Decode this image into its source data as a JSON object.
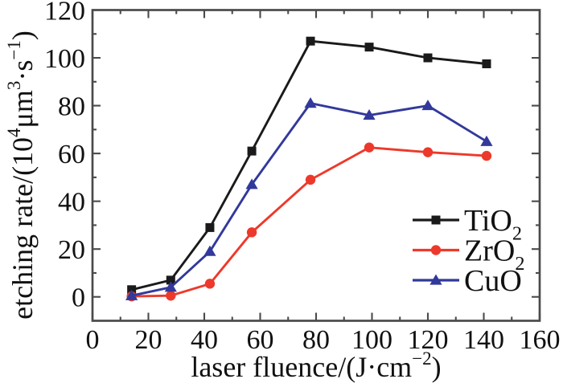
{
  "figure": {
    "background": "#ffffff"
  },
  "chart_data": {
    "type": "line",
    "title": "",
    "xlabel_text": "laser fluence/(J·cm⁻²)",
    "ylabel_text": "etching rate/(10⁴μm³·s⁻¹)",
    "xlabel_parts": [
      [
        "laser fluence/(J·cm",
        "n"
      ],
      [
        "−2",
        "sup"
      ],
      [
        ")",
        "n"
      ]
    ],
    "ylabel_parts": [
      [
        "etching rate/(10",
        "n"
      ],
      [
        "4",
        "sup"
      ],
      [
        "μm",
        "n"
      ],
      [
        "3",
        "sup"
      ],
      [
        "·s",
        "n"
      ],
      [
        "−1",
        "sup"
      ],
      [
        ")",
        "n"
      ]
    ],
    "x": [
      14,
      28,
      42,
      57,
      78,
      99,
      120,
      141
    ],
    "series": [
      {
        "name": "TiO2",
        "label_parts": [
          [
            "TiO",
            "n"
          ],
          [
            "2",
            "sub"
          ]
        ],
        "color": "#1a1a1a",
        "marker": "square",
        "values": [
          3,
          7,
          29,
          61,
          107,
          104.5,
          100,
          97.5
        ]
      },
      {
        "name": "ZrO2",
        "label_parts": [
          [
            "ZrO",
            "n"
          ],
          [
            "2",
            "sub"
          ]
        ],
        "color": "#ed392b",
        "marker": "circle",
        "values": [
          0.2,
          0.5,
          5.5,
          27,
          49,
          62.5,
          60.5,
          59
        ]
      },
      {
        "name": "CuO",
        "label_parts": [
          [
            "CuO",
            "n"
          ]
        ],
        "color": "#32399b",
        "marker": "triangle",
        "values": [
          0.5,
          4,
          19,
          47,
          81,
          76,
          80,
          65
        ]
      }
    ],
    "xlim": [
      0,
      160
    ],
    "ylim": [
      -10,
      120
    ],
    "x_major_ticks": [
      0,
      20,
      40,
      60,
      80,
      100,
      120,
      140,
      160
    ],
    "x_minor_ticks": [
      10,
      30,
      50,
      70,
      90,
      110,
      130,
      150
    ],
    "y_major_ticks": [
      0,
      20,
      40,
      60,
      80,
      100,
      120
    ],
    "y_minor_ticks": [
      10,
      30,
      50,
      70,
      90,
      110
    ],
    "grid": false,
    "legend_position": "inside-lower-right",
    "frame_color": "#4a4a4a",
    "text_color": "#111111"
  }
}
